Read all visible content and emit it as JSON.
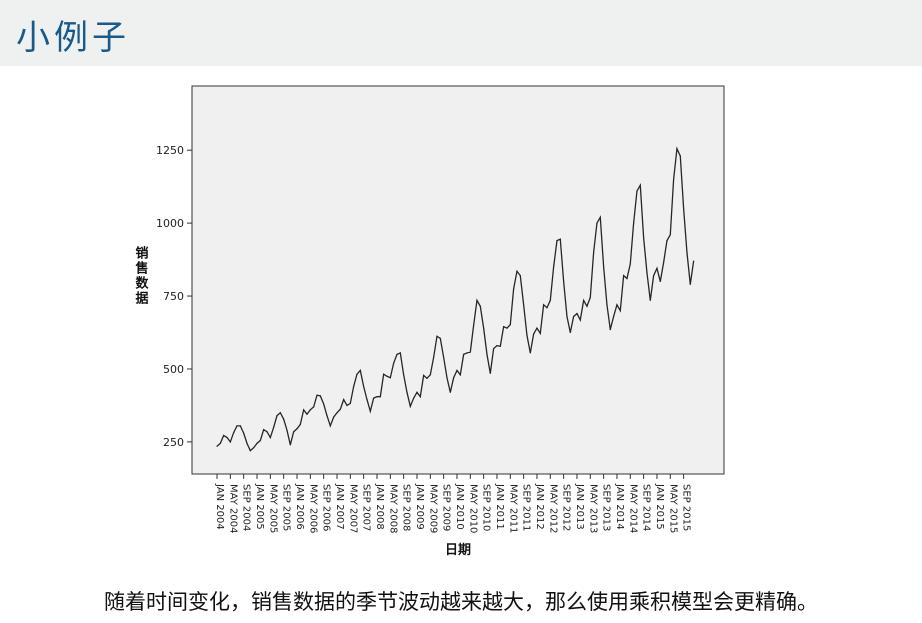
{
  "slide": {
    "title": "小例子",
    "caption": "随着时间变化，销售数据的季节波动越来越大，那么使用乘积模型会更精确。"
  },
  "colors": {
    "header_band": "#eef1f0",
    "title_text": "#1a5a8a",
    "plot_background": "#f0f0f0",
    "line": "#262626"
  },
  "chart_data": {
    "type": "line",
    "xlabel": "日期",
    "ylabel": "销售数据",
    "ylim": [
      140,
      1470
    ],
    "yticks": [
      250,
      500,
      750,
      1000,
      1250
    ],
    "grid": false,
    "x_start": "JAN 2004",
    "x_tick_labels": [
      "JAN 2004",
      "MAY 2004",
      "SEP 2004",
      "JAN 2005",
      "MAY 2005",
      "SEP 2005",
      "JAN 2006",
      "MAY 2006",
      "SEP 2006",
      "JAN 2007",
      "MAY 2007",
      "SEP 2007",
      "JAN 2008",
      "MAY 2008",
      "SEP 2008",
      "JAN 2009",
      "MAY 2009",
      "SEP 2009",
      "JAN 2010",
      "MAY 2010",
      "SEP 2010",
      "JAN 2011",
      "MAY 2011",
      "SEP 2011",
      "JAN 2012",
      "MAY 2012",
      "SEP 2012",
      "JAN 2013",
      "MAY 2013",
      "SEP 2013",
      "JAN 2014",
      "MAY 2014",
      "SEP 2014",
      "JAN 2015",
      "MAY 2015",
      "SEP 2015"
    ],
    "series": [
      {
        "values": [
          235,
          245,
          272,
          265,
          250,
          282,
          305,
          305,
          280,
          245,
          220,
          230,
          245,
          255,
          292,
          285,
          265,
          300,
          340,
          350,
          328,
          290,
          240,
          285,
          295,
          310,
          360,
          345,
          360,
          370,
          410,
          408,
          380,
          340,
          305,
          335,
          350,
          362,
          395,
          375,
          382,
          440,
          482,
          495,
          440,
          395,
          355,
          400,
          405,
          405,
          482,
          475,
          470,
          520,
          550,
          555,
          480,
          420,
          372,
          400,
          420,
          405,
          478,
          468,
          480,
          540,
          612,
          605,
          540,
          470,
          420,
          470,
          495,
          480,
          550,
          555,
          558,
          650,
          735,
          715,
          640,
          550,
          485,
          570,
          580,
          578,
          645,
          640,
          652,
          775,
          835,
          820,
          720,
          615,
          555,
          620,
          640,
          622,
          720,
          710,
          735,
          850,
          940,
          945,
          800,
          680,
          625,
          680,
          690,
          668,
          735,
          715,
          745,
          900,
          1000,
          1020,
          850,
          720,
          635,
          680,
          720,
          700,
          820,
          810,
          860,
          1000,
          1110,
          1130,
          950,
          830,
          735,
          820,
          845,
          800,
          865,
          940,
          960,
          1150,
          1255,
          1230,
          1050,
          900,
          790,
          870
        ]
      }
    ]
  }
}
